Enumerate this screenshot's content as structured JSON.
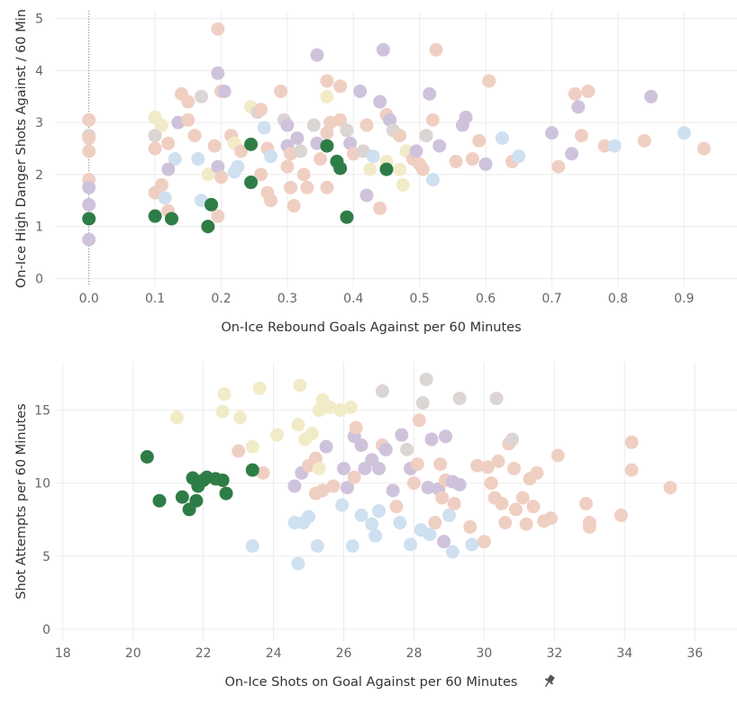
{
  "colors": {
    "highlight": "#2e7d46",
    "purple": "#cfc3dc",
    "grey": "#dbd5d3",
    "peach": "#f0cfc3",
    "cream": "#f2ebc8",
    "blue": "#cfe0f0"
  },
  "pin_icon": "pin-icon",
  "chart_data": [
    {
      "type": "scatter",
      "xlabel": "On-Ice Rebound Goals Against per 60 Minutes",
      "ylabel": "On-Ice High Danger Shots Against / 60 Min",
      "xlim": [
        -0.05,
        0.98
      ],
      "ylim": [
        -0.15,
        5.15
      ],
      "xticks": [
        "0.0",
        "0.1",
        "0.2",
        "0.3",
        "0.4",
        "0.5",
        "0.6",
        "0.7",
        "0.8",
        "0.9"
      ],
      "yticks": [
        "0",
        "1",
        "2",
        "3",
        "4",
        "5"
      ],
      "grid": true,
      "reference_line_x": 0.0,
      "points_highlight": [
        [
          0.0,
          1.15
        ],
        [
          0.1,
          1.2
        ],
        [
          0.125,
          1.15
        ],
        [
          0.18,
          1.0
        ],
        [
          0.185,
          1.42
        ],
        [
          0.245,
          2.58
        ],
        [
          0.245,
          1.85
        ],
        [
          0.36,
          2.55
        ],
        [
          0.375,
          2.25
        ],
        [
          0.38,
          2.12
        ],
        [
          0.39,
          1.18
        ],
        [
          0.45,
          2.1
        ]
      ],
      "points_background": [
        [
          0.0,
          3.05,
          "peach"
        ],
        [
          0.0,
          2.75,
          "grey"
        ],
        [
          0.0,
          2.7,
          "peach"
        ],
        [
          0.0,
          2.45,
          "peach"
        ],
        [
          0.0,
          1.9,
          "peach"
        ],
        [
          0.0,
          1.75,
          "purple"
        ],
        [
          0.0,
          1.42,
          "purple"
        ],
        [
          0.0,
          0.75,
          "purple"
        ],
        [
          0.1,
          3.1,
          "cream"
        ],
        [
          0.11,
          2.95,
          "cream"
        ],
        [
          0.1,
          2.75,
          "grey"
        ],
        [
          0.12,
          2.6,
          "peach"
        ],
        [
          0.1,
          2.5,
          "peach"
        ],
        [
          0.13,
          2.3,
          "blue"
        ],
        [
          0.12,
          2.1,
          "purple"
        ],
        [
          0.11,
          1.8,
          "peach"
        ],
        [
          0.1,
          1.65,
          "peach"
        ],
        [
          0.115,
          1.55,
          "blue"
        ],
        [
          0.12,
          1.3,
          "peach"
        ],
        [
          0.135,
          3.0,
          "purple"
        ],
        [
          0.14,
          3.55,
          "peach"
        ],
        [
          0.15,
          3.4,
          "peach"
        ],
        [
          0.15,
          3.05,
          "peach"
        ],
        [
          0.16,
          2.75,
          "peach"
        ],
        [
          0.17,
          3.5,
          "grey"
        ],
        [
          0.165,
          2.3,
          "blue"
        ],
        [
          0.17,
          1.5,
          "blue"
        ],
        [
          0.18,
          2.0,
          "cream"
        ],
        [
          0.195,
          4.8,
          "peach"
        ],
        [
          0.195,
          3.95,
          "purple"
        ],
        [
          0.2,
          3.6,
          "peach"
        ],
        [
          0.205,
          3.6,
          "purple"
        ],
        [
          0.19,
          2.55,
          "peach"
        ],
        [
          0.195,
          2.15,
          "purple"
        ],
        [
          0.2,
          1.95,
          "peach"
        ],
        [
          0.195,
          1.2,
          "peach"
        ],
        [
          0.215,
          2.75,
          "peach"
        ],
        [
          0.22,
          2.6,
          "cream"
        ],
        [
          0.23,
          2.45,
          "peach"
        ],
        [
          0.225,
          2.15,
          "blue"
        ],
        [
          0.22,
          2.05,
          "blue"
        ],
        [
          0.245,
          3.3,
          "cream"
        ],
        [
          0.255,
          3.2,
          "grey"
        ],
        [
          0.26,
          3.25,
          "peach"
        ],
        [
          0.265,
          2.9,
          "blue"
        ],
        [
          0.27,
          2.5,
          "peach"
        ],
        [
          0.275,
          2.35,
          "blue"
        ],
        [
          0.26,
          2.0,
          "peach"
        ],
        [
          0.27,
          1.65,
          "peach"
        ],
        [
          0.275,
          1.5,
          "peach"
        ],
        [
          0.29,
          3.6,
          "peach"
        ],
        [
          0.295,
          3.05,
          "grey"
        ],
        [
          0.3,
          2.95,
          "purple"
        ],
        [
          0.3,
          2.55,
          "purple"
        ],
        [
          0.305,
          2.4,
          "peach"
        ],
        [
          0.3,
          2.15,
          "peach"
        ],
        [
          0.305,
          1.75,
          "peach"
        ],
        [
          0.31,
          1.4,
          "peach"
        ],
        [
          0.315,
          2.7,
          "purple"
        ],
        [
          0.32,
          2.45,
          "grey"
        ],
        [
          0.325,
          2.0,
          "peach"
        ],
        [
          0.33,
          1.75,
          "peach"
        ],
        [
          0.345,
          4.3,
          "purple"
        ],
        [
          0.34,
          2.95,
          "grey"
        ],
        [
          0.345,
          2.6,
          "purple"
        ],
        [
          0.35,
          2.3,
          "peach"
        ],
        [
          0.36,
          3.8,
          "peach"
        ],
        [
          0.36,
          3.5,
          "cream"
        ],
        [
          0.365,
          3.0,
          "peach"
        ],
        [
          0.36,
          2.8,
          "peach"
        ],
        [
          0.36,
          1.75,
          "peach"
        ],
        [
          0.38,
          3.7,
          "peach"
        ],
        [
          0.38,
          3.05,
          "peach"
        ],
        [
          0.39,
          2.85,
          "grey"
        ],
        [
          0.395,
          2.6,
          "purple"
        ],
        [
          0.4,
          2.4,
          "peach"
        ],
        [
          0.41,
          3.6,
          "purple"
        ],
        [
          0.42,
          2.95,
          "peach"
        ],
        [
          0.415,
          2.45,
          "grey"
        ],
        [
          0.42,
          1.6,
          "purple"
        ],
        [
          0.425,
          2.1,
          "cream"
        ],
        [
          0.43,
          2.35,
          "blue"
        ],
        [
          0.445,
          4.4,
          "purple"
        ],
        [
          0.44,
          3.4,
          "purple"
        ],
        [
          0.45,
          3.15,
          "peach"
        ],
        [
          0.455,
          3.05,
          "purple"
        ],
        [
          0.46,
          2.85,
          "grey"
        ],
        [
          0.45,
          2.25,
          "cream"
        ],
        [
          0.44,
          1.35,
          "peach"
        ],
        [
          0.47,
          2.75,
          "peach"
        ],
        [
          0.48,
          2.45,
          "cream"
        ],
        [
          0.49,
          2.3,
          "peach"
        ],
        [
          0.47,
          2.1,
          "cream"
        ],
        [
          0.475,
          1.8,
          "cream"
        ],
        [
          0.495,
          2.45,
          "purple"
        ],
        [
          0.5,
          2.2,
          "peach"
        ],
        [
          0.505,
          2.1,
          "peach"
        ],
        [
          0.51,
          2.75,
          "grey"
        ],
        [
          0.515,
          3.55,
          "purple"
        ],
        [
          0.52,
          3.05,
          "peach"
        ],
        [
          0.52,
          1.9,
          "blue"
        ],
        [
          0.525,
          4.4,
          "peach"
        ],
        [
          0.53,
          2.55,
          "purple"
        ],
        [
          0.555,
          2.25,
          "peach"
        ],
        [
          0.565,
          2.95,
          "purple"
        ],
        [
          0.57,
          3.1,
          "purple"
        ],
        [
          0.58,
          2.3,
          "peach"
        ],
        [
          0.59,
          2.65,
          "peach"
        ],
        [
          0.6,
          2.2,
          "purple"
        ],
        [
          0.605,
          3.8,
          "peach"
        ],
        [
          0.625,
          2.7,
          "blue"
        ],
        [
          0.64,
          2.25,
          "peach"
        ],
        [
          0.65,
          2.35,
          "blue"
        ],
        [
          0.7,
          2.8,
          "purple"
        ],
        [
          0.71,
          2.15,
          "peach"
        ],
        [
          0.73,
          2.4,
          "purple"
        ],
        [
          0.735,
          3.55,
          "peach"
        ],
        [
          0.74,
          3.3,
          "purple"
        ],
        [
          0.745,
          2.75,
          "peach"
        ],
        [
          0.755,
          3.6,
          "peach"
        ],
        [
          0.78,
          2.55,
          "peach"
        ],
        [
          0.795,
          2.55,
          "blue"
        ],
        [
          0.84,
          2.65,
          "peach"
        ],
        [
          0.85,
          3.5,
          "purple"
        ],
        [
          0.9,
          2.8,
          "blue"
        ],
        [
          0.93,
          2.5,
          "peach"
        ]
      ]
    },
    {
      "type": "scatter",
      "xlabel": "On-Ice Shots on Goal Against per 60 Minutes",
      "ylabel": "Shot Attempts per 60 Minutes",
      "xlim": [
        17.8,
        37.2
      ],
      "ylim": [
        -0.8,
        18.3
      ],
      "xticks": [
        "18",
        "20",
        "22",
        "24",
        "26",
        "28",
        "30",
        "32",
        "34",
        "36"
      ],
      "yticks": [
        "0",
        "5",
        "10",
        "15"
      ],
      "grid": true,
      "points_highlight": [
        [
          20.4,
          11.8
        ],
        [
          20.75,
          8.8
        ],
        [
          21.4,
          9.05
        ],
        [
          21.6,
          8.2
        ],
        [
          21.7,
          10.35
        ],
        [
          21.8,
          8.8
        ],
        [
          21.85,
          9.8
        ],
        [
          22.0,
          10.2
        ],
        [
          22.1,
          10.4
        ],
        [
          22.35,
          10.3
        ],
        [
          22.55,
          10.2
        ],
        [
          22.65,
          9.3
        ],
        [
          23.4,
          10.9
        ]
      ],
      "points_background": [
        [
          21.25,
          14.5,
          "cream"
        ],
        [
          22.55,
          14.9,
          "cream"
        ],
        [
          22.6,
          16.1,
          "cream"
        ],
        [
          23.05,
          14.5,
          "cream"
        ],
        [
          23.4,
          12.5,
          "cream"
        ],
        [
          23.6,
          16.5,
          "cream"
        ],
        [
          23.7,
          10.7,
          "peach"
        ],
        [
          23.0,
          12.2,
          "peach"
        ],
        [
          23.4,
          5.7,
          "blue"
        ],
        [
          24.1,
          13.3,
          "cream"
        ],
        [
          24.6,
          9.8,
          "purple"
        ],
        [
          24.7,
          14.0,
          "cream"
        ],
        [
          24.75,
          16.7,
          "cream"
        ],
        [
          24.8,
          10.7,
          "purple"
        ],
        [
          24.9,
          13.0,
          "cream"
        ],
        [
          25.0,
          11.2,
          "peach"
        ],
        [
          25.2,
          11.7,
          "peach"
        ],
        [
          25.3,
          15.0,
          "cream"
        ],
        [
          25.4,
          15.7,
          "cream"
        ],
        [
          25.5,
          12.5,
          "purple"
        ],
        [
          24.6,
          7.3,
          "blue"
        ],
        [
          24.7,
          4.5,
          "blue"
        ],
        [
          24.85,
          7.3,
          "blue"
        ],
        [
          25.0,
          7.7,
          "blue"
        ],
        [
          25.25,
          5.7,
          "blue"
        ],
        [
          25.2,
          9.3,
          "peach"
        ],
        [
          25.4,
          9.5,
          "peach"
        ],
        [
          25.7,
          9.8,
          "peach"
        ],
        [
          25.95,
          8.5,
          "blue"
        ],
        [
          25.1,
          13.4,
          "cream"
        ],
        [
          25.3,
          11.0,
          "cream"
        ],
        [
          25.6,
          15.2,
          "cream"
        ],
        [
          25.9,
          15.0,
          "cream"
        ],
        [
          26.2,
          15.2,
          "cream"
        ],
        [
          26.3,
          13.2,
          "purple"
        ],
        [
          26.35,
          13.8,
          "peach"
        ],
        [
          26.5,
          12.6,
          "purple"
        ],
        [
          26.0,
          11.0,
          "purple"
        ],
        [
          26.1,
          9.7,
          "purple"
        ],
        [
          26.3,
          10.4,
          "peach"
        ],
        [
          26.6,
          11.0,
          "purple"
        ],
        [
          26.8,
          11.6,
          "purple"
        ],
        [
          27.0,
          11.0,
          "purple"
        ],
        [
          27.1,
          12.6,
          "peach"
        ],
        [
          27.2,
          12.3,
          "purple"
        ],
        [
          26.25,
          5.7,
          "blue"
        ],
        [
          26.5,
          7.8,
          "blue"
        ],
        [
          26.8,
          7.2,
          "blue"
        ],
        [
          27.0,
          8.1,
          "blue"
        ],
        [
          26.9,
          6.4,
          "blue"
        ],
        [
          27.1,
          16.3,
          "grey"
        ],
        [
          27.4,
          9.5,
          "purple"
        ],
        [
          27.5,
          8.4,
          "peach"
        ],
        [
          27.65,
          13.3,
          "purple"
        ],
        [
          27.8,
          12.3,
          "grey"
        ],
        [
          27.9,
          11.0,
          "purple"
        ],
        [
          28.0,
          10.0,
          "peach"
        ],
        [
          28.1,
          11.3,
          "peach"
        ],
        [
          28.15,
          14.3,
          "peach"
        ],
        [
          28.25,
          15.5,
          "grey"
        ],
        [
          28.35,
          17.1,
          "grey"
        ],
        [
          27.6,
          7.3,
          "blue"
        ],
        [
          27.9,
          5.8,
          "blue"
        ],
        [
          28.2,
          6.8,
          "blue"
        ],
        [
          28.45,
          6.5,
          "blue"
        ],
        [
          28.6,
          7.3,
          "peach"
        ],
        [
          28.7,
          9.6,
          "purple"
        ],
        [
          28.8,
          9.0,
          "peach"
        ],
        [
          28.85,
          6.0,
          "purple"
        ],
        [
          28.4,
          9.7,
          "purple"
        ],
        [
          28.5,
          13.0,
          "purple"
        ],
        [
          28.75,
          11.3,
          "peach"
        ],
        [
          28.9,
          13.2,
          "purple"
        ],
        [
          28.9,
          10.2,
          "peach"
        ],
        [
          29.1,
          10.1,
          "purple"
        ],
        [
          29.3,
          9.9,
          "purple"
        ],
        [
          29.0,
          7.8,
          "blue"
        ],
        [
          29.1,
          5.3,
          "blue"
        ],
        [
          29.15,
          8.6,
          "peach"
        ],
        [
          29.3,
          15.8,
          "grey"
        ],
        [
          29.6,
          7.0,
          "peach"
        ],
        [
          29.65,
          5.8,
          "blue"
        ],
        [
          29.8,
          11.2,
          "peach"
        ],
        [
          30.0,
          6.0,
          "peach"
        ],
        [
          30.1,
          11.1,
          "peach"
        ],
        [
          30.2,
          10.0,
          "peach"
        ],
        [
          30.3,
          9.0,
          "peach"
        ],
        [
          30.35,
          15.8,
          "grey"
        ],
        [
          30.4,
          11.5,
          "peach"
        ],
        [
          30.5,
          8.6,
          "peach"
        ],
        [
          30.6,
          7.3,
          "peach"
        ],
        [
          30.7,
          12.7,
          "peach"
        ],
        [
          30.8,
          13.0,
          "grey"
        ],
        [
          30.85,
          11.0,
          "peach"
        ],
        [
          30.9,
          8.2,
          "peach"
        ],
        [
          31.1,
          9.0,
          "peach"
        ],
        [
          31.2,
          7.2,
          "peach"
        ],
        [
          31.3,
          10.3,
          "peach"
        ],
        [
          31.4,
          8.4,
          "peach"
        ],
        [
          31.5,
          10.7,
          "peach"
        ],
        [
          31.7,
          7.4,
          "peach"
        ],
        [
          31.9,
          7.6,
          "peach"
        ],
        [
          32.1,
          11.9,
          "peach"
        ],
        [
          32.9,
          8.6,
          "peach"
        ],
        [
          33.0,
          7.0,
          "peach"
        ],
        [
          33.0,
          7.3,
          "peach"
        ],
        [
          33.9,
          7.8,
          "peach"
        ],
        [
          34.2,
          12.8,
          "peach"
        ],
        [
          34.2,
          10.9,
          "peach"
        ],
        [
          35.3,
          9.7,
          "peach"
        ]
      ]
    }
  ]
}
